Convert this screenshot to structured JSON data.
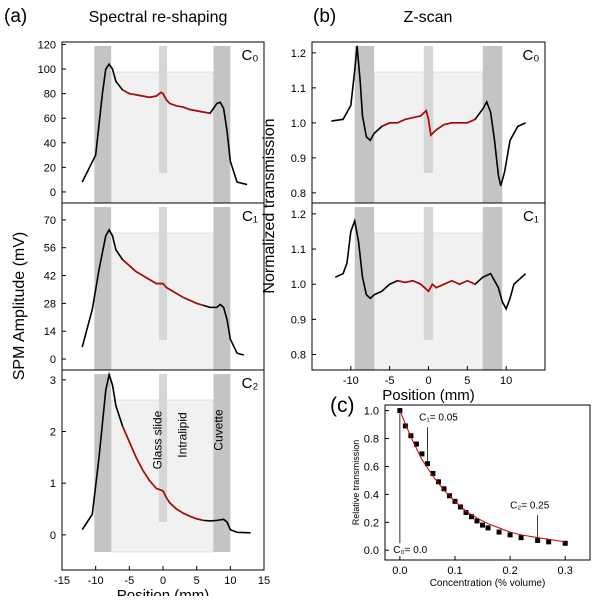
{
  "panel_a": {
    "label": "(a)",
    "title": "Spectral re-shaping",
    "ylabel": "SPM Amplitude (mV)"
  },
  "panel_b": {
    "label": "(b)",
    "title": "Z-scan",
    "ylabel": "Normalized transmission"
  },
  "panel_c": {
    "label": "(c)"
  },
  "chart_data": [
    {
      "type": "line",
      "annotation": "C₀",
      "xlim": [
        -15,
        15
      ],
      "ylim": [
        -9,
        122
      ],
      "yticks": [
        0,
        20,
        40,
        60,
        80,
        100,
        120
      ],
      "series": [
        {
          "color": "#000000",
          "x": [
            -12,
            -10,
            -9,
            -8.5,
            -8,
            -7.5,
            -7,
            -6,
            -5,
            -4,
            -3,
            -2,
            -1,
            -0.3,
            0,
            0.5,
            1,
            2,
            3,
            4,
            5,
            6,
            7,
            7.5,
            8,
            8.5,
            9,
            9.5,
            10,
            11,
            12.5
          ],
          "values": [
            8,
            30,
            80,
            100,
            104,
            100,
            90,
            83,
            80,
            79,
            78,
            77,
            78,
            81,
            80,
            75,
            72,
            70,
            69,
            67,
            66,
            65,
            64,
            68,
            72,
            73,
            68,
            50,
            25,
            8,
            6
          ]
        },
        {
          "color": "#cc0000",
          "x": [
            -6,
            -5,
            -4,
            -3,
            -2,
            -1,
            -0.3,
            0,
            0.5,
            1,
            2,
            3,
            4,
            5,
            6,
            7
          ],
          "values": [
            83,
            80,
            79,
            78,
            77,
            78,
            81,
            80,
            75,
            72,
            70,
            69,
            67,
            66,
            65,
            64
          ]
        }
      ]
    },
    {
      "type": "line",
      "annotation": "C₁",
      "xlim": [
        -15,
        15
      ],
      "ylim": [
        -5.5,
        78.5
      ],
      "yticks": [
        0,
        14,
        28,
        42,
        56,
        70
      ],
      "series": [
        {
          "color": "#000000",
          "x": [
            -12,
            -10.5,
            -9.5,
            -8.5,
            -8,
            -7.5,
            -7,
            -6,
            -5,
            -4,
            -3,
            -2,
            -1,
            0,
            0.5,
            1,
            2,
            3,
            4,
            5,
            6,
            7,
            8,
            8.5,
            9,
            9.5,
            10,
            11,
            12
          ],
          "values": [
            6,
            25,
            45,
            62,
            65,
            62,
            55,
            50,
            47,
            44,
            42,
            40,
            38,
            38,
            36,
            35,
            33,
            31,
            29.5,
            28,
            27,
            26,
            26,
            27.5,
            26,
            20,
            10,
            3,
            2
          ]
        },
        {
          "color": "#cc0000",
          "x": [
            -6,
            -5,
            -4,
            -3,
            -2,
            -1,
            0,
            0.5,
            1,
            2,
            3,
            4,
            5,
            6
          ],
          "values": [
            50,
            47,
            44,
            42,
            40,
            38,
            38,
            36,
            35,
            33,
            31,
            29.5,
            28,
            27
          ]
        }
      ]
    },
    {
      "type": "line",
      "annotation": "C₂",
      "xlim": [
        -15,
        15
      ],
      "ylim": [
        -0.68,
        3.19
      ],
      "yticks": [
        0,
        1,
        2,
        3
      ],
      "xticks": [
        -15,
        -10,
        -5,
        0,
        5,
        10,
        15
      ],
      "xlabel": "Position (mm)",
      "texts": [
        "Glass slide",
        "Intralipid",
        "Cuvette"
      ],
      "series": [
        {
          "color": "#000000",
          "x": [
            -12,
            -10.5,
            -9.5,
            -8.5,
            -8,
            -7.5,
            -7,
            -6,
            -5,
            -4,
            -3,
            -2,
            -1,
            0,
            0.5,
            1,
            2,
            3,
            4,
            5,
            6,
            7,
            8,
            9,
            9.5,
            10,
            11,
            13
          ],
          "values": [
            0.1,
            0.4,
            1.5,
            2.8,
            3.1,
            2.9,
            2.5,
            2.1,
            1.8,
            1.5,
            1.25,
            1.05,
            0.9,
            0.85,
            0.72,
            0.62,
            0.5,
            0.42,
            0.36,
            0.31,
            0.28,
            0.27,
            0.28,
            0.3,
            0.25,
            0.1,
            0.05,
            0.04
          ]
        },
        {
          "color": "#cc0000",
          "x": [
            -6,
            -5,
            -4,
            -3,
            -2,
            -1,
            0,
            0.5,
            1,
            2,
            3,
            4,
            5,
            6
          ],
          "values": [
            2.1,
            1.8,
            1.5,
            1.25,
            1.05,
            0.9,
            0.85,
            0.72,
            0.62,
            0.5,
            0.42,
            0.36,
            0.31,
            0.28
          ]
        }
      ]
    },
    {
      "type": "line",
      "annotation": "C₀",
      "xlim": [
        -15,
        15
      ],
      "ylim": [
        0.771,
        1.231
      ],
      "yticks": [
        0.8,
        0.9,
        {
          "value": 1,
          "label": "1.0"
        },
        1.1,
        1.2
      ],
      "series": [
        {
          "color": "#000000",
          "x": [
            -12.5,
            -11,
            -10,
            -9.5,
            -9.2,
            -8.8,
            -8.5,
            -8,
            -7.5,
            -7,
            -6,
            -5,
            -4,
            -3,
            -2,
            -1,
            -0.3,
            0,
            0.3,
            1,
            2,
            3,
            4,
            5,
            6,
            7,
            7.5,
            8,
            8.5,
            9,
            9.3,
            9.8,
            10.5,
            11.5,
            12.5
          ],
          "values": [
            1.005,
            1.01,
            1.05,
            1.15,
            1.22,
            1.12,
            1.02,
            0.96,
            0.95,
            0.97,
            0.99,
            1.0,
            1.0,
            1.01,
            1.015,
            1.02,
            1.035,
            1.01,
            0.965,
            0.98,
            0.995,
            1.0,
            1.0,
            1.0,
            1.01,
            1.04,
            1.06,
            1.03,
            0.95,
            0.85,
            0.82,
            0.86,
            0.95,
            0.99,
            1.0
          ]
        },
        {
          "color": "#cc0000",
          "x": [
            -6,
            -5,
            -4,
            -3,
            -2,
            -1,
            -0.3,
            0,
            0.3,
            1,
            2,
            3,
            4,
            5,
            6
          ],
          "values": [
            0.99,
            1.0,
            1.0,
            1.01,
            1.015,
            1.02,
            1.035,
            1.01,
            0.965,
            0.98,
            0.995,
            1.0,
            1.0,
            1.0,
            1.01
          ]
        }
      ]
    },
    {
      "type": "line",
      "annotation": "C₁",
      "xlim": [
        -15,
        15
      ],
      "ylim": [
        0.756,
        1.231
      ],
      "yticks": [
        0.8,
        0.9,
        {
          "value": 1,
          "label": "1.0"
        },
        1.1,
        1.2
      ],
      "xticks": [
        -10,
        -5,
        0,
        5,
        10
      ],
      "xlabel": "Position (mm)",
      "series": [
        {
          "color": "#000000",
          "x": [
            -12,
            -11,
            -10.5,
            -10,
            -9.5,
            -9,
            -8.5,
            -8,
            -7.5,
            -7,
            -6,
            -5,
            -4,
            -3,
            -2,
            -1,
            0,
            0.5,
            1,
            2,
            3,
            4,
            5,
            6,
            7,
            8,
            9,
            9.5,
            10,
            10.5,
            11,
            12,
            12.5
          ],
          "values": [
            1.02,
            1.03,
            1.06,
            1.15,
            1.18,
            1.12,
            1.02,
            0.97,
            0.96,
            0.97,
            0.98,
            1.0,
            1.01,
            1.005,
            1.01,
            1.0,
            0.98,
            1.0,
            0.99,
            1.0,
            1.01,
            1.0,
            1.01,
            1.0,
            1.02,
            1.03,
            0.99,
            0.95,
            0.93,
            0.96,
            1.0,
            1.02,
            1.03
          ]
        },
        {
          "color": "#cc0000",
          "x": [
            -4,
            -3,
            -2,
            -1,
            0,
            0.5,
            1,
            2,
            3,
            4,
            5,
            6
          ],
          "values": [
            1.01,
            1.005,
            1.01,
            1.0,
            0.98,
            1.0,
            0.99,
            1.0,
            1.01,
            1.0,
            1.01,
            1.0
          ]
        }
      ]
    },
    {
      "type": "scatter",
      "xlim": [
        -0.027,
        0.345
      ],
      "ylim": [
        -0.07,
        1.04
      ],
      "xlabel": "Concentration (% volume)",
      "ylabel": "Relative transmission",
      "xticks": [
        {
          "value": 0,
          "label": "0.0"
        },
        0.1,
        0.2,
        0.3
      ],
      "yticks": [
        {
          "value": 0,
          "label": "0.0"
        },
        0.2,
        0.4,
        0.6,
        0.8,
        {
          "value": 1,
          "label": "1.0"
        }
      ],
      "texts": [
        "C₀= 0.0",
        "C₁= 0.05",
        "C₂= 0.25"
      ],
      "series": [
        {
          "color": "#000000",
          "x": [
            0,
            0.01,
            0.02,
            0.03,
            0.04,
            0.05,
            0.06,
            0.07,
            0.08,
            0.09,
            0.1,
            0.11,
            0.12,
            0.13,
            0.14,
            0.15,
            0.16,
            0.18,
            0.2,
            0.22,
            0.25,
            0.27,
            0.3
          ],
          "values": [
            1.0,
            0.89,
            0.82,
            0.76,
            0.69,
            0.62,
            0.55,
            0.49,
            0.44,
            0.39,
            0.35,
            0.31,
            0.27,
            0.24,
            0.21,
            0.18,
            0.16,
            0.13,
            0.11,
            0.09,
            0.07,
            0.06,
            0.05
          ]
        },
        {
          "color": "#cc0000",
          "x": [
            0,
            0.02,
            0.04,
            0.06,
            0.08,
            0.1,
            0.12,
            0.14,
            0.16,
            0.18,
            0.2,
            0.22,
            0.25,
            0.3
          ],
          "values": [
            1.0,
            0.81,
            0.65,
            0.53,
            0.43,
            0.35,
            0.28,
            0.23,
            0.19,
            0.16,
            0.13,
            0.11,
            0.09,
            0.06
          ]
        }
      ]
    }
  ]
}
